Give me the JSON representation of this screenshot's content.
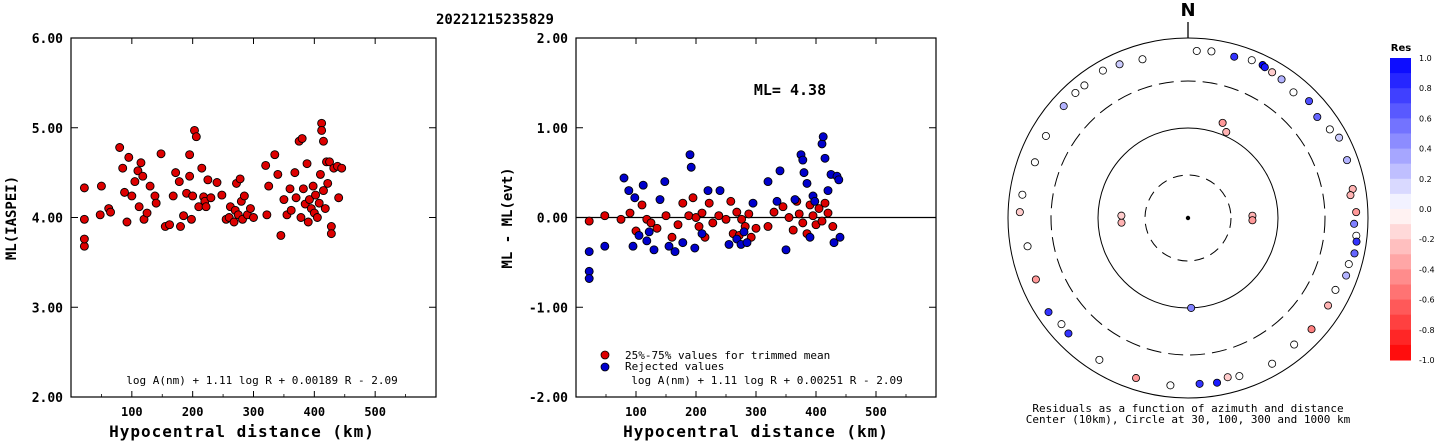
{
  "title": "20221215235829",
  "chart_data": [
    {
      "type": "scatter",
      "xlabel": "Hypocentral distance (km)",
      "ylabel": "ML(IASPEI)",
      "xlim": [
        0,
        600
      ],
      "ylim": [
        2.0,
        6.0
      ],
      "xticks": [
        "100",
        "200",
        "300",
        "400",
        "500"
      ],
      "yticks": [
        "2.00",
        "3.00",
        "4.00",
        "5.00",
        "6.00"
      ],
      "formula": "log A(nm) + 1.11 log R + 0.00189 R - 2.09",
      "marker_color": "#dd0000",
      "points": [
        [
          22,
          3.68
        ],
        [
          22,
          3.76
        ],
        [
          22,
          3.98
        ],
        [
          22,
          4.33
        ],
        [
          48,
          4.03
        ],
        [
          50,
          4.35
        ],
        [
          62,
          4.1
        ],
        [
          65,
          4.06
        ],
        [
          80,
          4.78
        ],
        [
          85,
          4.55
        ],
        [
          88,
          4.28
        ],
        [
          92,
          3.95
        ],
        [
          95,
          4.67
        ],
        [
          100,
          4.24
        ],
        [
          105,
          4.4
        ],
        [
          110,
          4.52
        ],
        [
          112,
          4.12
        ],
        [
          115,
          4.61
        ],
        [
          118,
          4.46
        ],
        [
          120,
          3.98
        ],
        [
          125,
          4.05
        ],
        [
          130,
          4.35
        ],
        [
          138,
          4.24
        ],
        [
          140,
          4.16
        ],
        [
          148,
          4.71
        ],
        [
          155,
          3.9
        ],
        [
          162,
          3.92
        ],
        [
          168,
          4.24
        ],
        [
          172,
          4.5
        ],
        [
          178,
          4.4
        ],
        [
          180,
          3.9
        ],
        [
          185,
          4.02
        ],
        [
          190,
          4.27
        ],
        [
          195,
          4.46
        ],
        [
          195,
          4.7
        ],
        [
          198,
          3.98
        ],
        [
          200,
          4.24
        ],
        [
          203,
          4.97
        ],
        [
          206,
          4.9
        ],
        [
          210,
          4.12
        ],
        [
          215,
          4.55
        ],
        [
          218,
          4.23
        ],
        [
          220,
          4.18
        ],
        [
          222,
          4.12
        ],
        [
          225,
          4.42
        ],
        [
          230,
          4.22
        ],
        [
          240,
          4.39
        ],
        [
          248,
          4.25
        ],
        [
          255,
          3.98
        ],
        [
          260,
          4.0
        ],
        [
          262,
          4.12
        ],
        [
          268,
          3.95
        ],
        [
          270,
          4.08
        ],
        [
          272,
          4.38
        ],
        [
          275,
          4.03
        ],
        [
          278,
          4.43
        ],
        [
          280,
          4.18
        ],
        [
          282,
          3.98
        ],
        [
          285,
          4.24
        ],
        [
          290,
          4.03
        ],
        [
          295,
          4.1
        ],
        [
          300,
          4.0
        ],
        [
          320,
          4.58
        ],
        [
          322,
          4.03
        ],
        [
          325,
          4.35
        ],
        [
          335,
          4.7
        ],
        [
          340,
          4.48
        ],
        [
          345,
          3.8
        ],
        [
          350,
          4.2
        ],
        [
          355,
          4.03
        ],
        [
          360,
          4.32
        ],
        [
          362,
          4.08
        ],
        [
          368,
          4.5
        ],
        [
          370,
          4.22
        ],
        [
          375,
          4.85
        ],
        [
          378,
          4.0
        ],
        [
          380,
          4.88
        ],
        [
          382,
          4.32
        ],
        [
          385,
          4.15
        ],
        [
          388,
          4.6
        ],
        [
          390,
          3.95
        ],
        [
          392,
          4.2
        ],
        [
          395,
          4.1
        ],
        [
          398,
          4.35
        ],
        [
          400,
          4.05
        ],
        [
          402,
          4.25
        ],
        [
          405,
          4.0
        ],
        [
          408,
          4.16
        ],
        [
          410,
          4.48
        ],
        [
          412,
          5.05
        ],
        [
          412,
          4.97
        ],
        [
          415,
          4.85
        ],
        [
          415,
          4.3
        ],
        [
          418,
          4.1
        ],
        [
          420,
          4.62
        ],
        [
          422,
          4.38
        ],
        [
          425,
          4.62
        ],
        [
          428,
          3.9
        ],
        [
          428,
          3.82
        ],
        [
          432,
          4.55
        ],
        [
          438,
          4.57
        ],
        [
          440,
          4.22
        ],
        [
          445,
          4.55
        ]
      ]
    },
    {
      "type": "scatter",
      "xlabel": "Hypocentral distance (km)",
      "ylabel": "ML - ML(evt)",
      "xlim": [
        0,
        600
      ],
      "ylim": [
        -2.0,
        2.0
      ],
      "xticks": [
        "100",
        "200",
        "300",
        "400",
        "500"
      ],
      "yticks": [
        "-2.00",
        "-1.00",
        "0.00",
        "1.00",
        "2.00"
      ],
      "reference_line": 0.0,
      "annotation": "ML= 4.38",
      "formula": "log A(nm) + 1.11 log R + 0.00251 R - 2.09",
      "series": [
        {
          "name": "25%-75% values for trimmed mean",
          "color": "#dd0000",
          "points": [
            [
              22,
              -0.04
            ],
            [
              48,
              0.02
            ],
            [
              75,
              -0.02
            ],
            [
              90,
              0.05
            ],
            [
              100,
              -0.15
            ],
            [
              110,
              0.14
            ],
            [
              118,
              -0.02
            ],
            [
              125,
              -0.06
            ],
            [
              135,
              -0.12
            ],
            [
              150,
              0.02
            ],
            [
              160,
              -0.22
            ],
            [
              170,
              -0.08
            ],
            [
              178,
              0.16
            ],
            [
              188,
              0.02
            ],
            [
              195,
              0.22
            ],
            [
              200,
              0.0
            ],
            [
              205,
              -0.1
            ],
            [
              210,
              0.05
            ],
            [
              215,
              -0.22
            ],
            [
              222,
              0.16
            ],
            [
              228,
              -0.06
            ],
            [
              238,
              0.02
            ],
            [
              250,
              -0.02
            ],
            [
              258,
              0.18
            ],
            [
              262,
              -0.18
            ],
            [
              268,
              0.06
            ],
            [
              272,
              -0.2
            ],
            [
              276,
              -0.02
            ],
            [
              282,
              -0.1
            ],
            [
              288,
              0.04
            ],
            [
              292,
              -0.22
            ],
            [
              300,
              -0.12
            ],
            [
              320,
              -0.1
            ],
            [
              330,
              0.06
            ],
            [
              345,
              0.12
            ],
            [
              355,
              0.0
            ],
            [
              362,
              -0.14
            ],
            [
              368,
              0.18
            ],
            [
              372,
              0.04
            ],
            [
              378,
              -0.06
            ],
            [
              385,
              -0.18
            ],
            [
              390,
              0.14
            ],
            [
              395,
              0.02
            ],
            [
              400,
              -0.08
            ],
            [
              405,
              0.1
            ],
            [
              410,
              -0.04
            ],
            [
              415,
              0.16
            ],
            [
              420,
              0.05
            ],
            [
              428,
              -0.1
            ]
          ]
        },
        {
          "name": "Rejected values",
          "color": "#0000cc",
          "points": [
            [
              22,
              -0.6
            ],
            [
              22,
              -0.68
            ],
            [
              22,
              -0.38
            ],
            [
              48,
              -0.32
            ],
            [
              80,
              0.44
            ],
            [
              88,
              0.3
            ],
            [
              95,
              -0.32
            ],
            [
              98,
              0.22
            ],
            [
              105,
              -0.2
            ],
            [
              112,
              0.36
            ],
            [
              118,
              -0.26
            ],
            [
              122,
              -0.16
            ],
            [
              130,
              -0.36
            ],
            [
              140,
              0.2
            ],
            [
              148,
              0.4
            ],
            [
              155,
              -0.32
            ],
            [
              165,
              -0.38
            ],
            [
              178,
              -0.28
            ],
            [
              190,
              0.7
            ],
            [
              192,
              0.56
            ],
            [
              198,
              -0.34
            ],
            [
              210,
              -0.18
            ],
            [
              220,
              0.3
            ],
            [
              240,
              0.3
            ],
            [
              255,
              -0.3
            ],
            [
              268,
              -0.24
            ],
            [
              275,
              -0.3
            ],
            [
              280,
              -0.16
            ],
            [
              285,
              -0.28
            ],
            [
              295,
              0.16
            ],
            [
              320,
              0.4
            ],
            [
              335,
              0.18
            ],
            [
              340,
              0.52
            ],
            [
              350,
              -0.36
            ],
            [
              365,
              0.2
            ],
            [
              375,
              0.7
            ],
            [
              378,
              0.64
            ],
            [
              380,
              0.5
            ],
            [
              385,
              0.38
            ],
            [
              390,
              -0.22
            ],
            [
              395,
              0.24
            ],
            [
              398,
              0.18
            ],
            [
              410,
              0.82
            ],
            [
              412,
              0.9
            ],
            [
              415,
              0.66
            ],
            [
              420,
              0.3
            ],
            [
              425,
              0.48
            ],
            [
              430,
              -0.28
            ],
            [
              435,
              0.46
            ],
            [
              438,
              0.42
            ],
            [
              440,
              -0.22
            ]
          ]
        }
      ]
    },
    {
      "type": "scatter",
      "subtype": "polar",
      "north_label": "N",
      "caption_line1": "Residuals as a function of azimuth and distance",
      "caption_line2": "Center (10km), Circle at 30, 100, 300 and 1000 km",
      "circles_km": [
        30,
        100,
        300,
        1000
      ],
      "colorbar": {
        "title": "Res",
        "labels": [
          "1.0",
          "0.8",
          "0.6",
          "0.4",
          "0.2",
          "0.0",
          "-0.2",
          "-0.4",
          "-0.6",
          "-0.8",
          "-1.0"
        ]
      },
      "points": [
        [
          3,
          700,
          0.0
        ],
        [
          8,
          720,
          0.0
        ],
        [
          16,
          710,
          0.8
        ],
        [
          22,
          760,
          0.0
        ],
        [
          26,
          760,
          1.0
        ],
        [
          27,
          740,
          0.9
        ],
        [
          30,
          720,
          -0.2
        ],
        [
          34,
          700,
          0.3
        ],
        [
          40,
          640,
          0.0
        ],
        [
          46,
          720,
          0.7
        ],
        [
          52,
          640,
          0.6
        ],
        [
          58,
          700,
          0.0
        ],
        [
          62,
          780,
          0.2
        ],
        [
          70,
          740,
          0.3
        ],
        [
          80,
          700,
          -0.3
        ],
        [
          82,
          640,
          -0.3
        ],
        [
          88,
          720,
          -0.4
        ],
        [
          92,
          680,
          0.5
        ],
        [
          96,
          740,
          0.0
        ],
        [
          98,
          760,
          0.8
        ],
        [
          102,
          760,
          0.6
        ],
        [
          106,
          700,
          0.0
        ],
        [
          110,
          720,
          0.3
        ],
        [
          116,
          640,
          0.0
        ],
        [
          122,
          660,
          -0.3
        ],
        [
          132,
          680,
          -0.5
        ],
        [
          140,
          660,
          0.0
        ],
        [
          150,
          720,
          0.0
        ],
        [
          162,
          680,
          0.0
        ],
        [
          166,
          640,
          -0.2
        ],
        [
          170,
          700,
          0.9
        ],
        [
          176,
          680,
          0.8
        ],
        [
          186,
          720,
          0.0
        ],
        [
          198,
          720,
          -0.4
        ],
        [
          212,
          700,
          0.0
        ],
        [
          226,
          680,
          0.8
        ],
        [
          230,
          660,
          0.0
        ],
        [
          236,
          720,
          0.8
        ],
        [
          248,
          640,
          -0.4
        ],
        [
          260,
          620,
          0.0
        ],
        [
          272,
          720,
          -0.2
        ],
        [
          278,
          700,
          0.0
        ],
        [
          290,
          620,
          0.0
        ],
        [
          300,
          640,
          0.0
        ],
        [
          312,
          700,
          0.3
        ],
        [
          318,
          720,
          0.0
        ],
        [
          322,
          720,
          0.0
        ],
        [
          330,
          760,
          0.0
        ],
        [
          336,
          720,
          0.2
        ],
        [
          344,
          660,
          0.0
        ],
        [
          20,
          130,
          -0.4
        ],
        [
          24,
          110,
          -0.3
        ],
        [
          88,
          52,
          -0.3
        ],
        [
          92,
          52,
          -0.4
        ],
        [
          178,
          100,
          0.5
        ],
        [
          266,
          55,
          -0.3
        ],
        [
          272,
          55,
          -0.2
        ]
      ]
    }
  ]
}
